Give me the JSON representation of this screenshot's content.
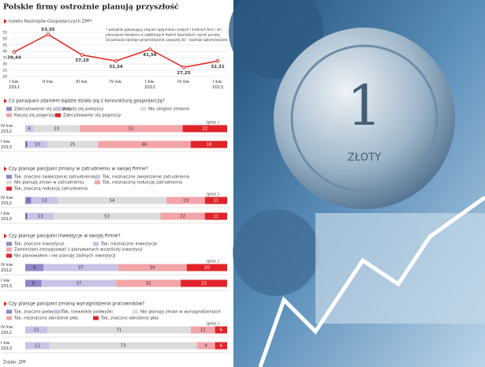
{
  "title": "Polskie firmy ostrożnie planują przyszłość",
  "chart_data": {
    "type": "line",
    "subtitle": "Indeks Nastrojów Gospodarczych ZPP*",
    "note": [
      "* wskaźnik pokazujący stopień optymizmu małych i średnich firm i ich",
      "planowane działania w najbliższych dwóch kwartałach; wynik poniżej",
      "50 oznacza nastroje pesymistyczne, powyżej 50 – nastroje optymistyczne"
    ],
    "categories": [
      "I kw. 2011",
      "II kw.",
      "III kw.",
      "IV kw.",
      "I kw. 2012",
      "IV kw.",
      "I kw. 2013"
    ],
    "values": [
      39.44,
      53.35,
      37.1,
      32.34,
      41.56,
      27.25,
      32.31
    ],
    "value_labels": [
      "39,44",
      "53,35",
      "37,10",
      "32,34",
      "41,56",
      "27,25",
      "32,31"
    ],
    "color": "#e2231a",
    "ylim": [
      20,
      55
    ],
    "yticks": [
      20,
      25,
      30,
      35,
      40,
      45,
      50,
      55
    ],
    "grid": true
  },
  "surveys": [
    {
      "question": "Co pana/pani zdaniem będzie działo się z koniunkturą gospodarczą?",
      "unit": "(proc.)",
      "legend": [
        {
          "name": "Zdecydowanie się polepszy",
          "color": "#8f86c8"
        },
        {
          "name": "Raczej się polepszy",
          "color": "#c9c3e6"
        },
        {
          "name": "Nie ulegnie zmianie",
          "color": "#dcdcdc"
        },
        {
          "name": "Raczej się pogorszy",
          "color": "#f2a4a8"
        },
        {
          "name": "Zdecydowanie się pogorszy",
          "color": "#e0242a"
        }
      ],
      "rows": [
        {
          "label": "IV kw. 2012",
          "values": [
            null,
            4,
            23,
            51,
            22
          ]
        },
        {
          "label": "I kw. 2013",
          "values": [
            1,
            10,
            25,
            46,
            18
          ]
        }
      ]
    },
    {
      "question": "Czy planuje pan/pani zmiany w zatrudnieniu w swojej firmie?",
      "unit": "(proc.)",
      "legend": [
        {
          "name": "Tak, znaczne zwiększenie zatrudnienia",
          "color": "#8f86c8"
        },
        {
          "name": "Tak, nieznaczne zwiększenie zatrudnienia",
          "color": "#c9c3e6"
        },
        {
          "name": "Nie planuję zmian w zatrudnieniu",
          "color": "#dcdcdc"
        },
        {
          "name": "Tak, nieznaczną redukcję zatrudnienia",
          "color": "#f2a4a8"
        },
        {
          "name": "Tak, znaczną redukcję zatrudnienia",
          "color": "#e0242a"
        }
      ],
      "rows": [
        {
          "label": "IV kw. 2012",
          "values": [
            3,
            13,
            54,
            19,
            11
          ]
        },
        {
          "label": "I kw. 2013",
          "values": [
            1,
            13,
            53,
            22,
            11
          ]
        }
      ]
    },
    {
      "question": "Czy planuje pan/pani inwestycje w swojej firmie?",
      "unit": "(proc.)",
      "legend": [
        {
          "name": "Tak, znaczne inwestycje",
          "color": "#8f86c8"
        },
        {
          "name": "Tak, nieznaczne inwestycje",
          "color": "#c9c3e6"
        },
        {
          "name": "Zamierzam zrezygnować z planowanych wcześniej inwestycji",
          "color": "#f2a4a8"
        },
        {
          "name": "Nie planowałem i nie planuję żadnych inwestycji",
          "color": "#e0242a"
        }
      ],
      "rows": [
        {
          "label": "IV kw. 2012",
          "values": [
            9,
            37,
            34,
            20
          ]
        },
        {
          "label": "I kw. 2013",
          "values": [
            8,
            37,
            32,
            23
          ]
        }
      ]
    },
    {
      "question": "Czy planuje pan/pani zmianę wynagrodzenia pracowników?",
      "unit": "(proc.)",
      "legend": [
        {
          "name": "Tak, znaczne podwyżki",
          "color": "#8f86c8"
        },
        {
          "name": "Tak, niewielkie podwyżki",
          "color": "#c9c3e6"
        },
        {
          "name": "Nie planuję zmian w wynagrodzeniach",
          "color": "#dcdcdc"
        },
        {
          "name": "Tak, nieznaczne obniżenie płac",
          "color": "#f2a4a8"
        },
        {
          "name": "Tak, znaczne obniżenie płac",
          "color": "#e0242a"
        }
      ],
      "rows": [
        {
          "label": "IV kw. 2012",
          "values": [
            null,
            11,
            71,
            12,
            6
          ]
        },
        {
          "label": "I kw. 2013",
          "values": [
            null,
            12,
            73,
            9,
            6
          ]
        }
      ]
    }
  ],
  "source": "Źródło: ZPP",
  "photo": {
    "texts": [
      "1",
      "ZŁOTY"
    ]
  }
}
